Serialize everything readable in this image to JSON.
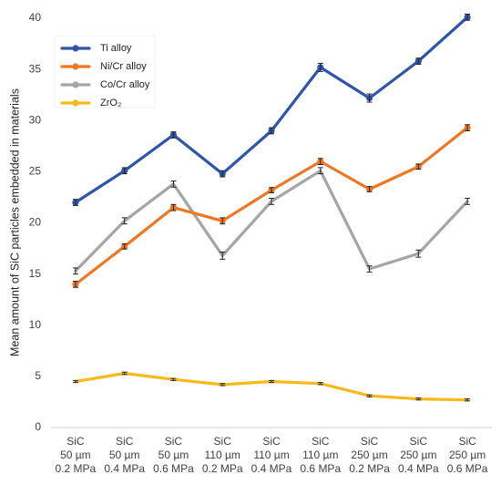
{
  "chart_data": {
    "type": "line",
    "title": "",
    "xlabel": "",
    "ylabel": "Mean amount of SiC particles embedded in materials",
    "ylim": [
      0,
      40
    ],
    "yticks": [
      0,
      5,
      10,
      15,
      20,
      25,
      30,
      35,
      40
    ],
    "grid": false,
    "legend_position": "top-left",
    "categories": [
      [
        "SiC",
        "50 µm",
        "0.2 MPa"
      ],
      [
        "SiC",
        "50 µm",
        "0.4 MPa"
      ],
      [
        "SiC",
        "50 µm",
        "0.6 MPa"
      ],
      [
        "SiC",
        "110 µm",
        "0.2 MPa"
      ],
      [
        "SiC",
        "110 µm",
        "0.4 MPa"
      ],
      [
        "SiC",
        "110 µm",
        "0.6 MPa"
      ],
      [
        "SiC",
        "250 µm",
        "0.2 MPa"
      ],
      [
        "SiC",
        "250 µm",
        "0.4 MPa"
      ],
      [
        "SiC",
        "250 µm",
        "0.6 MPa"
      ]
    ],
    "series": [
      {
        "name": "Ti alloy",
        "color": "#2E55A8",
        "marker": "circle",
        "values": [
          22.0,
          25.1,
          28.6,
          24.8,
          29.0,
          35.2,
          32.2,
          35.8,
          40.1
        ],
        "errors": [
          0.3,
          0.3,
          0.3,
          0.3,
          0.3,
          0.4,
          0.4,
          0.3,
          0.3
        ]
      },
      {
        "name": "Ni/Cr alloy",
        "color": "#EE7723",
        "marker": "circle",
        "values": [
          14.0,
          17.7,
          21.5,
          20.2,
          23.2,
          26.0,
          23.3,
          25.5,
          29.3
        ],
        "errors": [
          0.3,
          0.25,
          0.3,
          0.3,
          0.25,
          0.3,
          0.25,
          0.25,
          0.3
        ]
      },
      {
        "name": "Co/Cr alloy",
        "color": "#A5A5A5",
        "marker": "none",
        "values": [
          15.3,
          20.2,
          23.8,
          16.8,
          22.1,
          25.1,
          15.5,
          17.0,
          22.1
        ],
        "errors": [
          0.3,
          0.3,
          0.3,
          0.35,
          0.3,
          0.3,
          0.3,
          0.35,
          0.3
        ]
      },
      {
        "name": "ZrO₂",
        "color": "#F8BA1A",
        "marker": "none",
        "values": [
          4.5,
          5.3,
          4.7,
          4.2,
          4.5,
          4.3,
          3.1,
          2.8,
          2.7
        ],
        "errors": [
          0.1,
          0.12,
          0.1,
          0.1,
          0.1,
          0.1,
          0.1,
          0.1,
          0.1
        ]
      }
    ]
  }
}
